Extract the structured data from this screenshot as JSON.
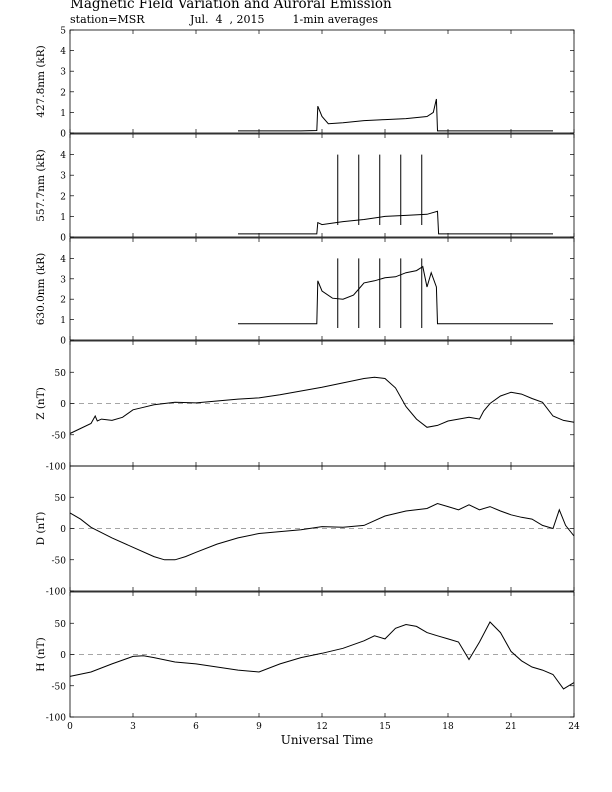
{
  "title": "Magnetic Field Variation and Auroral Emission",
  "station": "station=MSR",
  "date": "Jul.  4  , 2015",
  "averaging": "1-min averages",
  "chart_data": {
    "type": "line",
    "xlabel": "Universal Time",
    "xlim": [
      0,
      24
    ],
    "xticks": [
      "0",
      "3",
      "6",
      "9",
      "12",
      "15",
      "18",
      "21",
      "24"
    ],
    "panels": [
      {
        "ylabel": "427.8nm (kR)",
        "ylim": [
          0,
          5
        ],
        "yticks": [
          "0",
          "1",
          "2",
          "3",
          "4",
          "5"
        ],
        "zero_line": false,
        "series": {
          "x": [
            8.0,
            9.0,
            10.0,
            11.0,
            11.75,
            11.8,
            12.0,
            12.3,
            13.0,
            14.0,
            15.0,
            16.0,
            17.0,
            17.3,
            17.45,
            17.5,
            18.0,
            19.0,
            20.0,
            21.0,
            22.0,
            23.0
          ],
          "y": [
            0.1,
            0.1,
            0.1,
            0.1,
            0.12,
            1.3,
            0.8,
            0.45,
            0.5,
            0.6,
            0.65,
            0.7,
            0.8,
            1.0,
            1.65,
            0.1,
            0.1,
            0.1,
            0.1,
            0.1,
            0.1,
            0.1
          ]
        },
        "spikes": [],
        "spike_top": 0
      },
      {
        "ylabel": "557.7nm (kR)",
        "ylim": [
          0,
          5
        ],
        "yticks": [
          "0",
          "1",
          "2",
          "3",
          "4"
        ],
        "zero_line": false,
        "series": {
          "x": [
            8.0,
            9.0,
            10.0,
            11.0,
            11.75,
            11.8,
            12.0,
            13.0,
            14.0,
            15.0,
            16.0,
            17.0,
            17.5,
            17.55,
            18.0,
            19.0,
            20.0,
            21.0,
            22.0,
            23.0
          ],
          "y": [
            0.15,
            0.15,
            0.15,
            0.15,
            0.15,
            0.7,
            0.6,
            0.75,
            0.85,
            1.0,
            1.05,
            1.1,
            1.25,
            0.15,
            0.15,
            0.15,
            0.15,
            0.15,
            0.15,
            0.15
          ]
        },
        "spikes": [
          12.75,
          13.75,
          14.75,
          15.75,
          16.75
        ],
        "spike_top": 4.0
      },
      {
        "ylabel": "630.0nm (kR)",
        "ylim": [
          0,
          5
        ],
        "yticks": [
          "0",
          "1",
          "2",
          "3",
          "4"
        ],
        "zero_line": false,
        "series": {
          "x": [
            8.0,
            9.0,
            10.0,
            11.0,
            11.75,
            11.8,
            12.0,
            12.5,
            13.0,
            13.5,
            13.75,
            14.0,
            14.5,
            15.0,
            15.5,
            16.0,
            16.5,
            16.8,
            17.0,
            17.2,
            17.45,
            17.5,
            18.0,
            19.0,
            20.0,
            21.0,
            22.0,
            23.0
          ],
          "y": [
            0.8,
            0.8,
            0.8,
            0.8,
            0.8,
            2.9,
            2.4,
            2.05,
            2.0,
            2.2,
            2.5,
            2.8,
            2.9,
            3.05,
            3.1,
            3.3,
            3.4,
            3.6,
            2.6,
            3.3,
            2.6,
            0.8,
            0.8,
            0.8,
            0.8,
            0.8,
            0.8,
            0.8
          ]
        },
        "spikes": [
          12.75,
          13.75,
          14.75,
          15.75,
          16.75
        ],
        "spike_top": 4.0
      },
      {
        "ylabel": "Z (nT)",
        "ylim": [
          -100,
          100
        ],
        "yticks": [
          "-100",
          "-50",
          "0",
          "50"
        ],
        "zero_line": true,
        "series": {
          "x": [
            0,
            0.5,
            1.0,
            1.2,
            1.3,
            1.5,
            2.0,
            2.5,
            3.0,
            3.5,
            4.0,
            5.0,
            6.0,
            7.0,
            8.0,
            9.0,
            10.0,
            11.0,
            12.0,
            13.0,
            14.0,
            14.5,
            15.0,
            15.5,
            16.0,
            16.5,
            17.0,
            17.5,
            18.0,
            19.0,
            19.5,
            19.7,
            20.0,
            20.5,
            21.0,
            21.5,
            22.0,
            22.5,
            23.0,
            23.5,
            24.0
          ],
          "y": [
            -48,
            -40,
            -32,
            -20,
            -28,
            -25,
            -27,
            -22,
            -10,
            -6,
            -2,
            2,
            1,
            4,
            7,
            9,
            14,
            20,
            26,
            33,
            40,
            42,
            40,
            25,
            -5,
            -25,
            -38,
            -35,
            -28,
            -22,
            -25,
            -12,
            0,
            12,
            18,
            15,
            8,
            2,
            -20,
            -27,
            -30
          ]
        },
        "spikes": [],
        "spike_top": 0
      },
      {
        "ylabel": "D (nT)",
        "ylim": [
          -100,
          100
        ],
        "yticks": [
          "-100",
          "-50",
          "0",
          "50"
        ],
        "zero_line": true,
        "series": {
          "x": [
            0,
            0.5,
            1.0,
            2.0,
            3.0,
            4.0,
            4.5,
            5.0,
            5.5,
            6.0,
            7.0,
            8.0,
            9.0,
            10.0,
            11.0,
            12.0,
            13.0,
            14.0,
            15.0,
            16.0,
            17.0,
            17.5,
            18.0,
            18.5,
            19.0,
            19.5,
            20.0,
            20.5,
            21.0,
            21.5,
            22.0,
            22.5,
            23.0,
            23.3,
            23.6,
            24.0
          ],
          "y": [
            25,
            15,
            2,
            -15,
            -30,
            -45,
            -50,
            -50,
            -45,
            -38,
            -25,
            -15,
            -8,
            -5,
            -2,
            3,
            2,
            5,
            20,
            28,
            32,
            40,
            35,
            30,
            38,
            30,
            35,
            28,
            22,
            18,
            15,
            5,
            0,
            30,
            5,
            -12
          ]
        },
        "spikes": [],
        "spike_top": 0
      },
      {
        "ylabel": "H (nT)",
        "ylim": [
          -100,
          100
        ],
        "yticks": [
          "-100",
          "-50",
          "0",
          "50"
        ],
        "zero_line": true,
        "series": {
          "x": [
            0,
            1.0,
            2.0,
            3.0,
            3.5,
            4.0,
            5.0,
            6.0,
            7.0,
            8.0,
            9.0,
            10.0,
            11.0,
            12.0,
            13.0,
            14.0,
            14.5,
            15.0,
            15.5,
            16.0,
            16.5,
            17.0,
            17.5,
            18.0,
            18.5,
            19.0,
            19.5,
            20.0,
            20.5,
            21.0,
            21.5,
            22.0,
            22.5,
            23.0,
            23.5,
            24.0
          ],
          "y": [
            -35,
            -28,
            -15,
            -3,
            -2,
            -5,
            -12,
            -15,
            -20,
            -25,
            -28,
            -15,
            -5,
            2,
            10,
            22,
            30,
            25,
            42,
            48,
            45,
            35,
            30,
            25,
            20,
            -8,
            20,
            52,
            35,
            5,
            -10,
            -20,
            -25,
            -32,
            -55,
            -45
          ]
        },
        "spikes": [],
        "spike_top": 0
      }
    ]
  }
}
